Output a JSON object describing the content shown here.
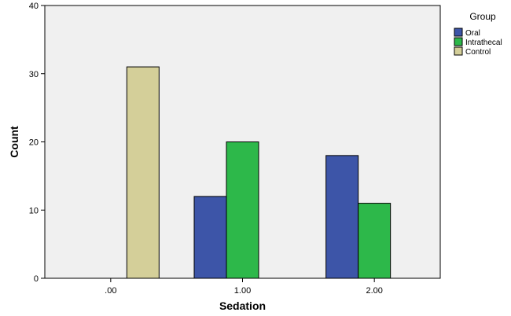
{
  "chart_data": {
    "type": "bar",
    "title": "",
    "xlabel": "Sedation",
    "ylabel": "Count",
    "categories": [
      ".00",
      "1.00",
      "2.00"
    ],
    "series": [
      {
        "name": "Oral",
        "color": "#3d55a8",
        "values": [
          null,
          12,
          18
        ]
      },
      {
        "name": "Intrathecal",
        "color": "#2db84a",
        "values": [
          null,
          20,
          11
        ]
      },
      {
        "name": "Control",
        "color": "#d4cf99",
        "values": [
          31,
          null,
          null
        ]
      }
    ],
    "ylim": [
      0,
      40
    ],
    "yticks": [
      0,
      10,
      20,
      30,
      40
    ],
    "grid": false,
    "legend": {
      "title": "Group",
      "placement": "right"
    },
    "plot_background": "#f0f0f0"
  }
}
